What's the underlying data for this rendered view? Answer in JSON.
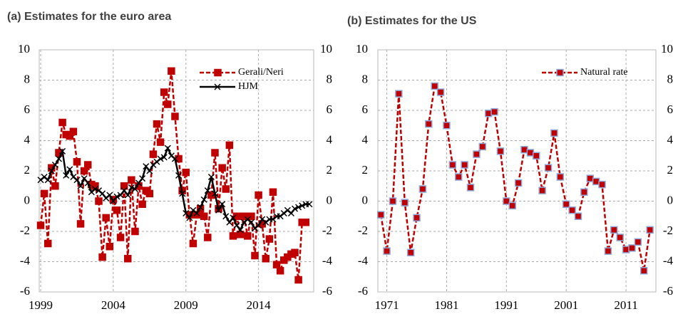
{
  "chart_data": [
    {
      "type": "line",
      "title": "(a) Estimates for the euro area",
      "xlim": [
        1998.9,
        2017.8
      ],
      "xticks": [
        1999,
        2004,
        2009,
        2014
      ],
      "ylim": [
        -6,
        10
      ],
      "yticks": [
        -6,
        -4,
        -2,
        0,
        2,
        4,
        6,
        8,
        10
      ],
      "grid": true,
      "legend": "upper-right",
      "series": [
        {
          "name": "Gerali/Neri",
          "color": "#c00000",
          "dash": true,
          "marker": "square",
          "marker_edge": "#c00000",
          "x": [
            1999,
            1999.25,
            1999.5,
            1999.75,
            2000,
            2000.25,
            2000.5,
            2000.75,
            2001,
            2001.25,
            2001.5,
            2001.75,
            2002,
            2002.25,
            2002.5,
            2002.75,
            2003,
            2003.25,
            2003.5,
            2003.75,
            2004,
            2004.25,
            2004.5,
            2004.75,
            2005,
            2005.25,
            2005.5,
            2005.75,
            2006,
            2006.25,
            2006.5,
            2006.75,
            2007,
            2007.25,
            2007.5,
            2007.75,
            2008,
            2008.25,
            2008.5,
            2008.75,
            2009,
            2009.25,
            2009.5,
            2009.75,
            2010,
            2010.25,
            2010.5,
            2010.75,
            2011,
            2011.25,
            2011.5,
            2011.75,
            2012,
            2012.25,
            2012.5,
            2012.75,
            2013,
            2013.25,
            2013.5,
            2013.75,
            2014,
            2014.25,
            2014.5,
            2014.75,
            2015,
            2015.25,
            2015.5,
            2015.75,
            2016,
            2016.25,
            2016.5,
            2016.75,
            2017,
            2017.25
          ],
          "values": [
            -1.6,
            0.5,
            -2.8,
            2.2,
            1.0,
            3.2,
            5.2,
            4.4,
            4.3,
            4.6,
            2.6,
            -1.5,
            2.0,
            2.4,
            1.1,
            1.0,
            0.0,
            -3.7,
            -1.1,
            -3.0,
            0.1,
            -0.6,
            -2.4,
            1.0,
            -3.8,
            1.4,
            -2.0,
            1.0,
            -0.2,
            0.7,
            0.5,
            3.1,
            5.1,
            3.9,
            7.2,
            6.4,
            8.6,
            5.6,
            2.8,
            0.7,
            1.9,
            -0.9,
            -2.8,
            -0.9,
            -0.5,
            -1.0,
            -2.4,
            0.4,
            3.2,
            -0.5,
            2.2,
            0.8,
            3.7,
            -2.3,
            -1.0,
            -2.2,
            -1.0,
            -2.3,
            -1.0,
            -3.6,
            0.4,
            -1.5,
            -3.8,
            -2.5,
            0.6,
            -4.2,
            -4.6,
            -3.9,
            -3.7,
            -3.5,
            -3.4,
            -5.2,
            -1.4,
            -1.4
          ]
        },
        {
          "name": "HJM",
          "color": "#000000",
          "dash": false,
          "marker": "cross",
          "marker_edge": "#000000",
          "x": [
            1999,
            1999.25,
            1999.5,
            1999.75,
            2000,
            2000.25,
            2000.5,
            2000.75,
            2001,
            2001.25,
            2001.5,
            2001.75,
            2002,
            2002.25,
            2002.5,
            2002.75,
            2003,
            2003.25,
            2003.5,
            2003.75,
            2004,
            2004.25,
            2004.5,
            2004.75,
            2005,
            2005.25,
            2005.5,
            2005.75,
            2006,
            2006.25,
            2006.5,
            2006.75,
            2007,
            2007.25,
            2007.5,
            2007.75,
            2008,
            2008.25,
            2008.5,
            2008.75,
            2009,
            2009.25,
            2009.5,
            2009.75,
            2010,
            2010.25,
            2010.5,
            2010.75,
            2011,
            2011.25,
            2011.5,
            2011.75,
            2012,
            2012.25,
            2012.5,
            2012.75,
            2013,
            2013.25,
            2013.5,
            2013.75,
            2014,
            2014.25,
            2014.5,
            2014.75,
            2015,
            2015.25,
            2015.5,
            2015.75,
            2016,
            2016.25,
            2016.5,
            2016.75,
            2017,
            2017.25,
            2017.5
          ],
          "values": [
            1.4,
            1.6,
            1.4,
            2.0,
            2.4,
            2.8,
            3.3,
            1.7,
            2.1,
            1.6,
            1.4,
            1.0,
            1.5,
            1.2,
            0.6,
            0.8,
            0.7,
            0.5,
            0.2,
            0.4,
            0.0,
            0.3,
            0.4,
            0.7,
            0.4,
            0.9,
            0.8,
            1.2,
            1.5,
            2.3,
            2.0,
            2.4,
            2.6,
            2.8,
            2.9,
            3.5,
            3.0,
            2.8,
            1.7,
            0.5,
            -0.8,
            -1.1,
            -0.6,
            -0.8,
            -0.4,
            0.1,
            0.7,
            1.6,
            0.5,
            -0.6,
            -0.2,
            -1.0,
            -1.4,
            -1.1,
            -1.6,
            -1.9,
            -1.4,
            -1.2,
            -1.4,
            -1.8,
            -1.6,
            -1.2,
            -1.4,
            -1.2,
            -1.2,
            -1.0,
            -1.0,
            -0.8,
            -0.6,
            -0.8,
            -0.5,
            -0.4,
            -0.3,
            -0.2,
            -0.2
          ]
        }
      ]
    },
    {
      "type": "line",
      "title": "(b) Estimates for the US",
      "xlim": [
        1969.5,
        2016
      ],
      "xticks": [
        1971,
        1981,
        1991,
        2001,
        2011
      ],
      "ylim": [
        -6,
        10
      ],
      "yticks": [
        -6,
        -4,
        -2,
        0,
        2,
        4,
        6,
        8,
        10
      ],
      "grid": true,
      "legend": "upper-right",
      "series": [
        {
          "name": "Natural rate",
          "color": "#c00000",
          "dash": true,
          "marker": "square",
          "marker_edge": "#8ea9db",
          "x": [
            1970,
            1971,
            1972,
            1973,
            1974,
            1975,
            1976,
            1977,
            1978,
            1979,
            1980,
            1981,
            1982,
            1983,
            1984,
            1985,
            1986,
            1987,
            1988,
            1989,
            1990,
            1991,
            1992,
            1993,
            1994,
            1995,
            1996,
            1997,
            1998,
            1999,
            2000,
            2001,
            2002,
            2003,
            2004,
            2005,
            2006,
            2007,
            2008,
            2009,
            2010,
            2011,
            2012,
            2013,
            2014,
            2015
          ],
          "values": [
            -0.9,
            -3.3,
            0.0,
            7.1,
            -0.1,
            -3.4,
            -1.1,
            0.8,
            5.1,
            7.6,
            7.2,
            5.0,
            2.4,
            1.6,
            2.4,
            0.9,
            3.1,
            3.6,
            5.8,
            5.9,
            3.3,
            0.0,
            -0.3,
            1.2,
            3.4,
            3.2,
            3.0,
            0.7,
            2.2,
            4.5,
            1.6,
            -0.2,
            -0.6,
            -1.0,
            0.6,
            1.5,
            1.3,
            1.1,
            -3.3,
            -1.9,
            -2.4,
            -3.2,
            -3.1,
            -2.7,
            -4.6,
            -1.9
          ]
        }
      ]
    }
  ]
}
